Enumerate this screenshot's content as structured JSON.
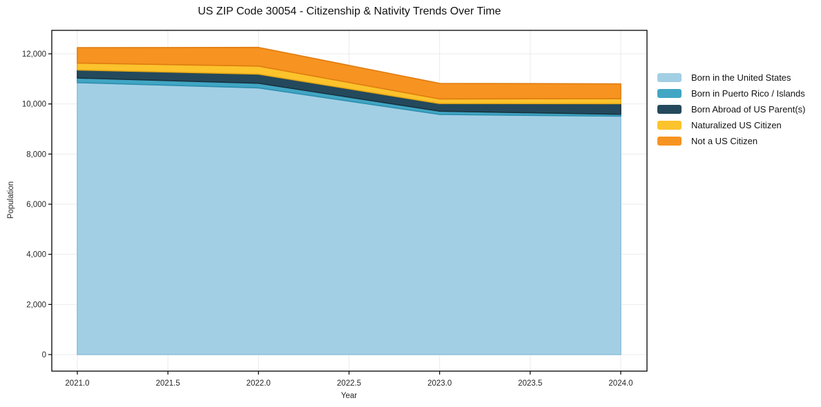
{
  "page": {
    "background": "#ffffff"
  },
  "chart_data": {
    "type": "area",
    "stacked": true,
    "title": "US ZIP Code 30054 - Citizenship & Nativity Trends Over Time",
    "xlabel": "Year",
    "ylabel": "Population",
    "x": [
      2021,
      2022,
      2023,
      2024
    ],
    "series": [
      {
        "name": "Born in the United States",
        "color": "#a3cfe5",
        "edge_color": "#8cc0da",
        "values": [
          10850,
          10640,
          9580,
          9510
        ]
      },
      {
        "name": "Born in Puerto Rico / Islands",
        "color": "#41a6c4",
        "edge_color": "#2d8fae",
        "values": [
          185,
          185,
          130,
          75
        ]
      },
      {
        "name": "Born Abroad of US Parent(s)",
        "color": "#24495c",
        "edge_color": "#18333f",
        "values": [
          320,
          365,
          305,
          425
        ]
      },
      {
        "name": "Naturalized US Citizen",
        "color": "#fcc32d",
        "edge_color": "#e5a816",
        "values": [
          275,
          320,
          185,
          200
        ]
      },
      {
        "name": "Not a US Citizen",
        "color": "#f79320",
        "edge_color": "#df7d10",
        "values": [
          615,
          745,
          620,
          590
        ]
      }
    ],
    "xlim": [
      2021,
      2024
    ],
    "ylim": [
      0,
      12000
    ],
    "xticks": {
      "values": [
        2021.0,
        2021.5,
        2022.0,
        2022.5,
        2023.0,
        2023.5,
        2024.0
      ],
      "labels": [
        "2021.0",
        "2021.5",
        "2022.0",
        "2022.5",
        "2023.0",
        "2023.5",
        "2024.0"
      ]
    },
    "yticks": {
      "values": [
        0,
        2000,
        4000,
        6000,
        8000,
        10000,
        12000
      ],
      "labels": [
        "0",
        "2,000",
        "4,000",
        "6,000",
        "8,000",
        "10,000",
        "12,000"
      ]
    },
    "grid": true,
    "grid_color": "#ebebeb",
    "frame_color": "#000000",
    "legend_position": "right-outside"
  }
}
